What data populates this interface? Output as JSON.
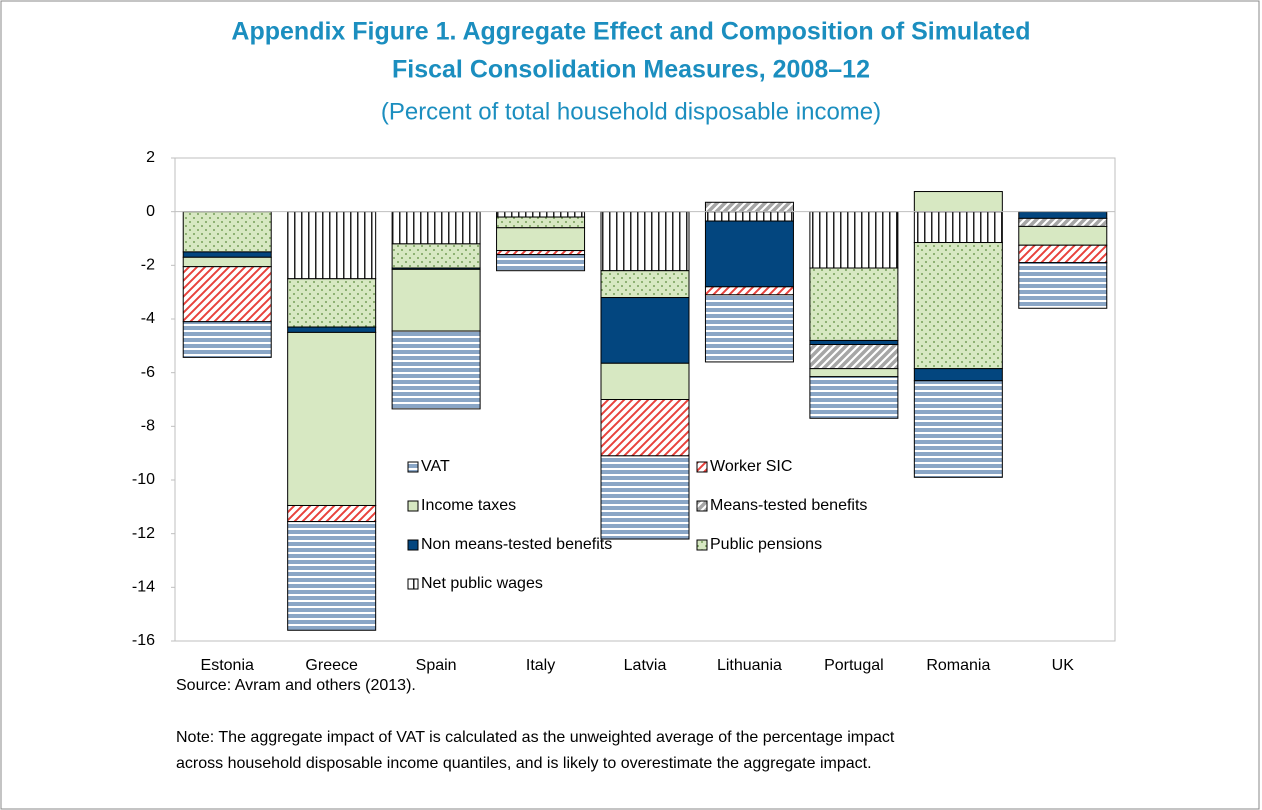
{
  "chart_data": {
    "type": "stacked_bar",
    "title": [
      "Appendix Figure 1. Aggregate Effect and Composition of Simulated",
      "Fiscal Consolidation Measures, 2008–12"
    ],
    "subtitle": "(Percent of total household disposable income)",
    "categories": [
      "Estonia",
      "Greece",
      "Spain",
      "Italy",
      "Latvia",
      "Lithuania",
      "Portugal",
      "Romania",
      "UK"
    ],
    "series": [
      {
        "name": "VAT",
        "color": "#8aa6c6",
        "pattern": "horizontal",
        "values": [
          -1.33,
          -4.05,
          -2.9,
          -0.6,
          -3.1,
          -2.5,
          -1.55,
          -3.6,
          -1.7
        ]
      },
      {
        "name": "Worker SIC",
        "color": "#e8423c",
        "pattern": "diagonal",
        "values": [
          -2.05,
          -0.6,
          0,
          -0.15,
          -2.1,
          -0.3,
          0,
          0,
          -0.65
        ]
      },
      {
        "name": "Income taxes",
        "color": "#d7e8c2",
        "pattern": "solid",
        "values": [
          -0.35,
          -6.45,
          -2.3,
          -0.85,
          -1.35,
          0,
          -0.3,
          0.75,
          -0.7
        ]
      },
      {
        "name": "Means-tested benefits",
        "color": "#a6a6a6",
        "pattern": "diagonal-thick",
        "values": [
          0,
          0,
          0,
          0,
          0,
          0.35,
          -0.9,
          0,
          -0.3
        ]
      },
      {
        "name": "Non means-tested benefits",
        "color": "#03467f",
        "pattern": "solid",
        "values": [
          -0.2,
          -0.2,
          -0.05,
          0,
          -2.45,
          -2.45,
          -0.15,
          -0.45,
          -0.25
        ]
      },
      {
        "name": "Public pensions",
        "color": "#d7e8c2",
        "pattern": "dots",
        "values": [
          -1.5,
          -1.8,
          -0.9,
          -0.4,
          -1.0,
          0,
          -2.7,
          -4.7,
          0
        ]
      },
      {
        "name": "Net public wages",
        "color": "#222222",
        "pattern": "vertical",
        "values": [
          0,
          -2.5,
          -1.2,
          -0.2,
          -2.2,
          -0.35,
          -2.1,
          -1.15,
          0
        ]
      }
    ],
    "ylim": [
      -16,
      2
    ],
    "yticks": [
      -16,
      -14,
      -12,
      -10,
      -8,
      -6,
      -4,
      -2,
      0,
      2
    ],
    "source": "Source: Avram and others (2013).",
    "note": [
      "Note: The aggregate impact of VAT is calculated as the unweighted average of the percentage impact",
      "across household disposable income quantiles, and is likely to overestimate the aggregate impact."
    ]
  }
}
